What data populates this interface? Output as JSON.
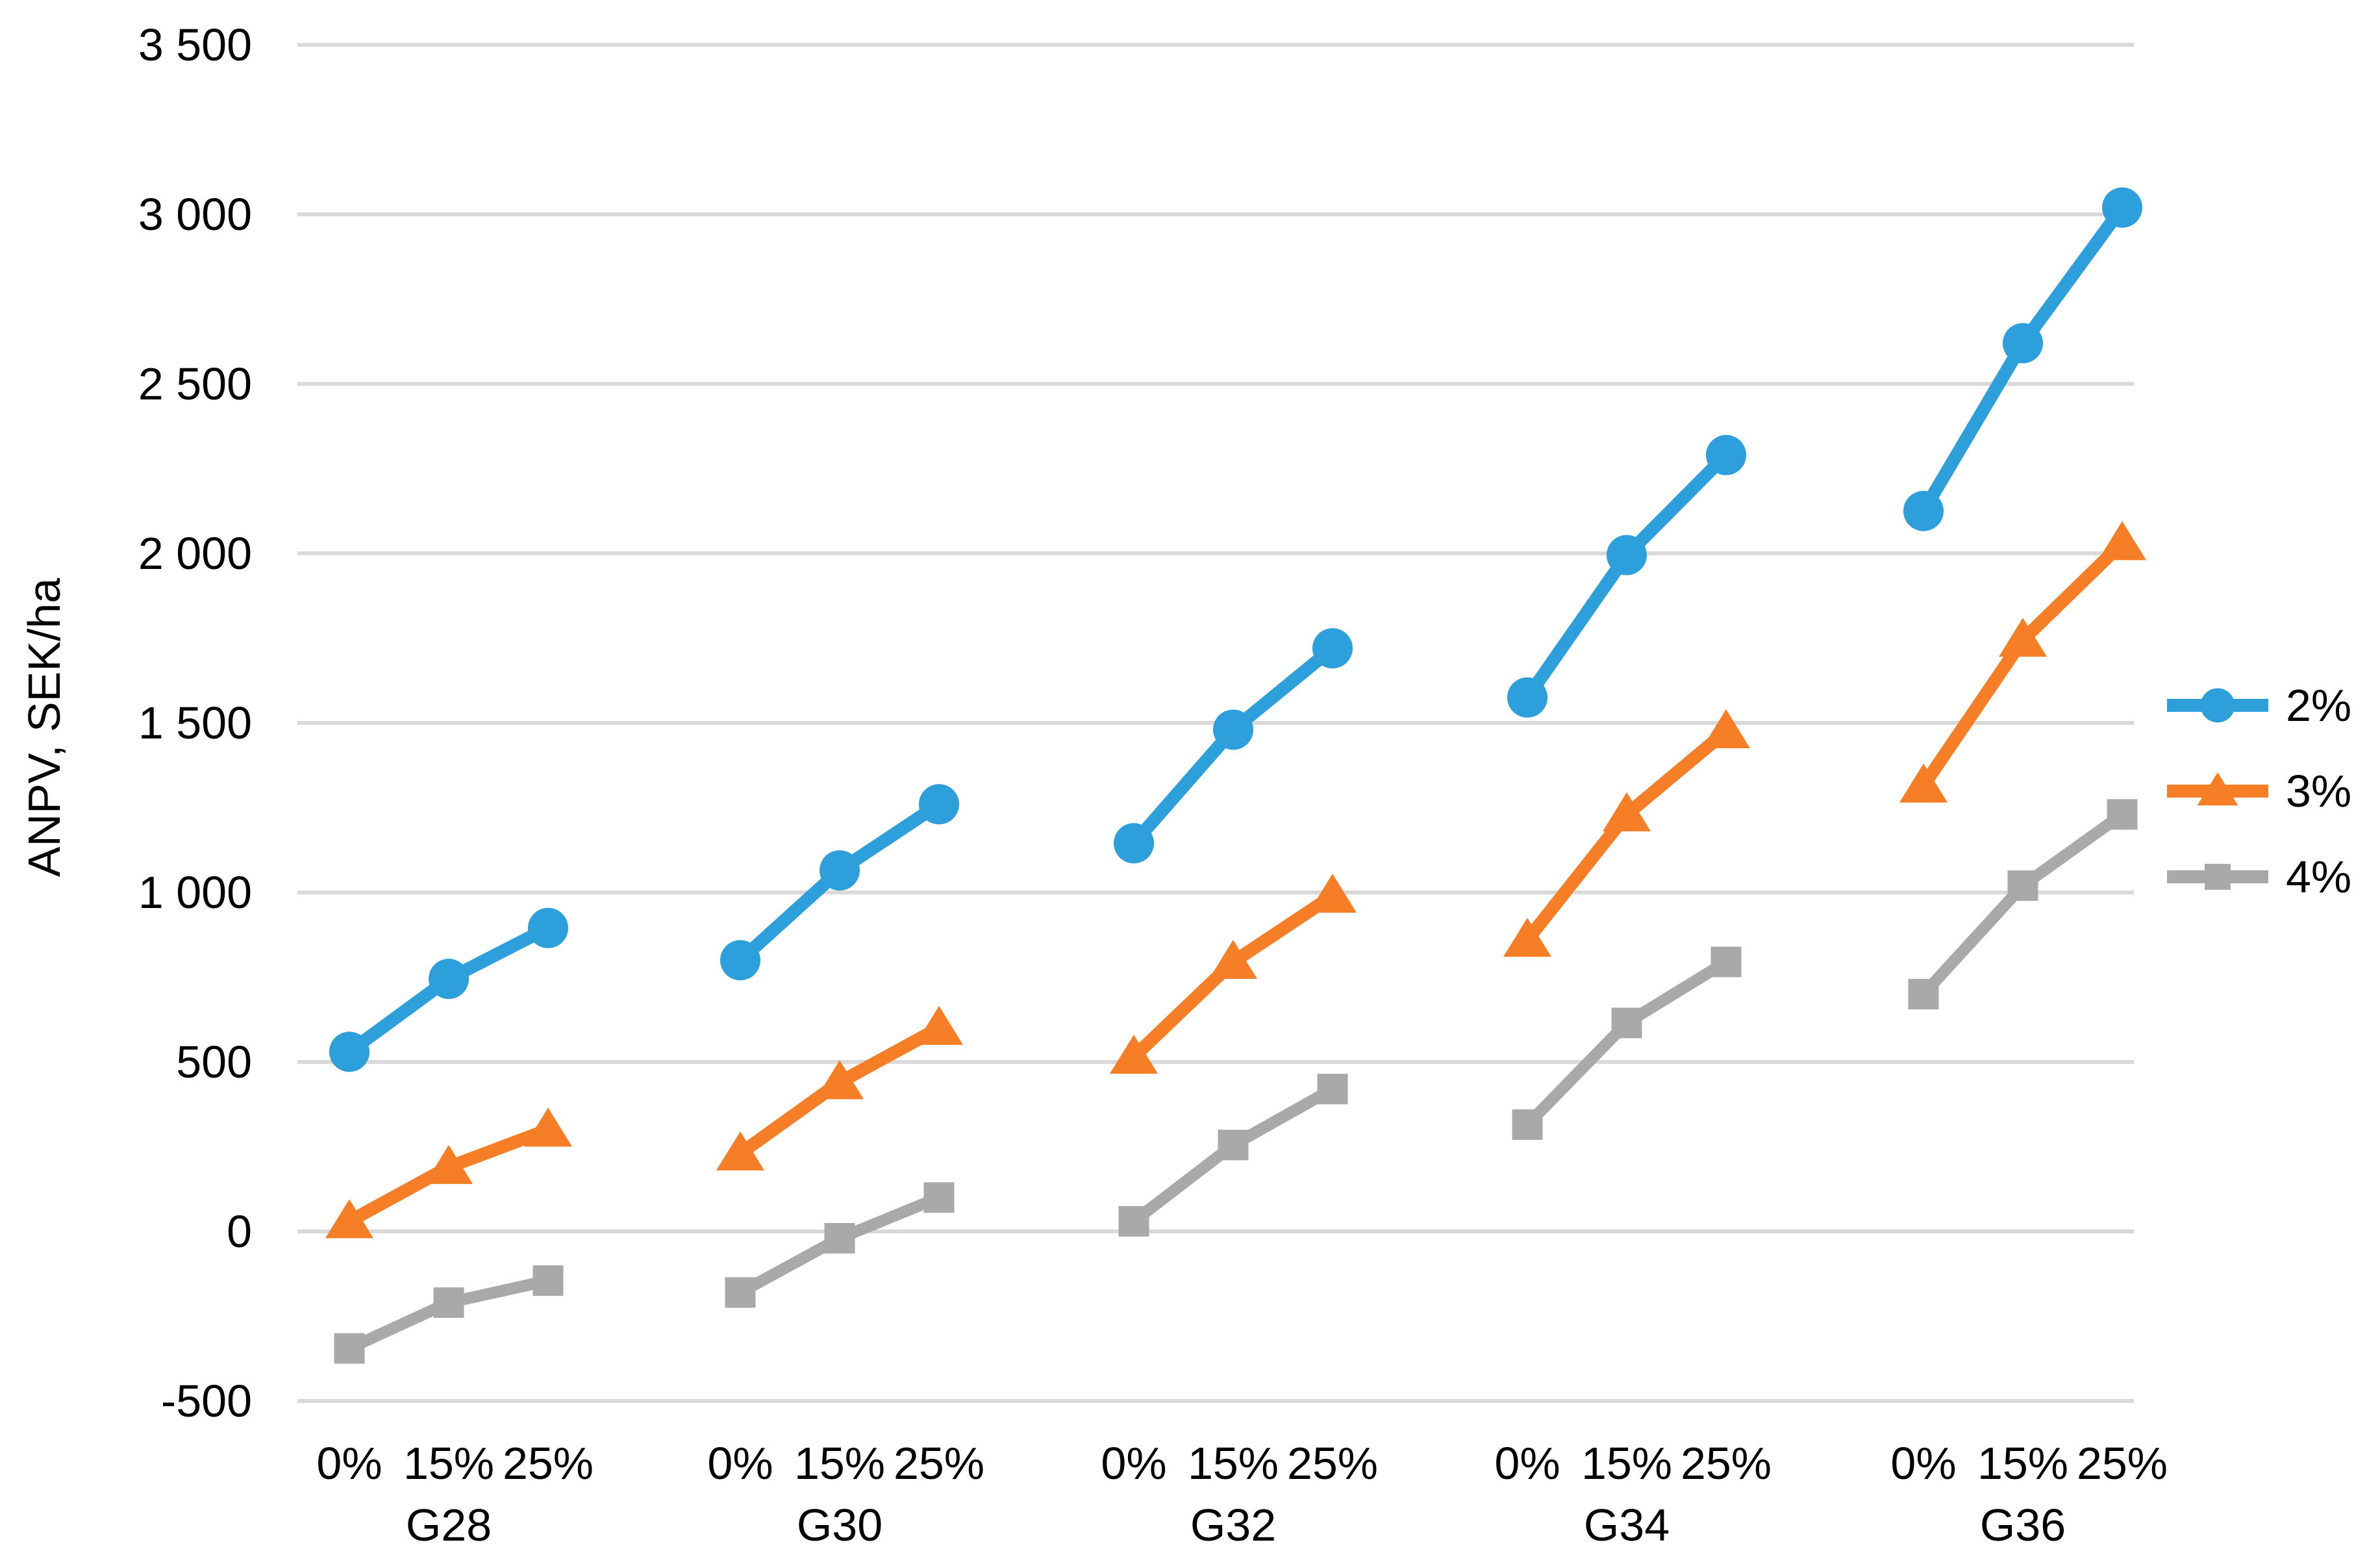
{
  "page": {
    "background": "#FFFFFF"
  },
  "chart_data": {
    "type": "line",
    "title": "",
    "ylabel": "ANPV, SEK/ha",
    "xlabel": "",
    "ylim": [
      -500,
      3500
    ],
    "ytick_step": 500,
    "yticks": [
      3500,
      3000,
      2500,
      2000,
      1500,
      1000,
      500,
      0,
      -500
    ],
    "ytick_labels": [
      "3 500",
      "3 000",
      "2 500",
      "2 000",
      "1 500",
      "1 000",
      "500",
      "0",
      "-500"
    ],
    "groups": [
      "G28",
      "G30",
      "G32",
      "G34",
      "G36"
    ],
    "x_ticks_per_group": [
      "0%",
      "15%",
      "25%"
    ],
    "grid": "horizontal-only",
    "grid_color": "#D9D9D9",
    "text_color": "#000000",
    "legend_position": "right",
    "legend_entries": [
      "2%",
      "3%",
      "4%"
    ],
    "series": [
      {
        "name": "2%",
        "marker": "circle",
        "color": "#2D9FDA",
        "values": [
          [
            530,
            745,
            895
          ],
          [
            800,
            1065,
            1260
          ],
          [
            1145,
            1480,
            1720
          ],
          [
            1575,
            1995,
            2290
          ],
          [
            2125,
            2620,
            3020
          ]
        ]
      },
      {
        "name": "3%",
        "marker": "triangle",
        "color": "#F57E27",
        "values": [
          [
            30,
            190,
            300
          ],
          [
            230,
            440,
            600
          ],
          [
            515,
            795,
            990
          ],
          [
            860,
            1230,
            1475
          ],
          [
            1315,
            1745,
            2030
          ]
        ]
      },
      {
        "name": "4%",
        "marker": "square",
        "color": "#A9A9A9",
        "values": [
          [
            -345,
            -210,
            -145
          ],
          [
            -180,
            -20,
            100
          ],
          [
            30,
            255,
            420
          ],
          [
            315,
            615,
            795
          ],
          [
            700,
            1020,
            1230
          ]
        ]
      }
    ]
  }
}
